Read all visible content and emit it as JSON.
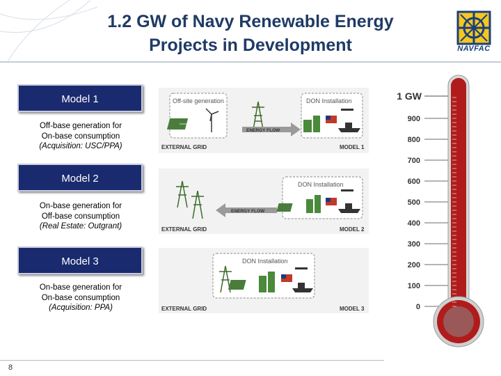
{
  "title_line1": "1.2 GW of Navy Renewable Energy",
  "title_line2": "Projects in Development",
  "logo_text": "NAVFAC",
  "models": [
    {
      "label": "Model 1",
      "desc_line1": "Off-base generation for",
      "desc_line2": "On-base consumption",
      "desc_line3": "(Acquisition: USC/PPA)"
    },
    {
      "label": "Model 2",
      "desc_line1": "On-base generation for",
      "desc_line2": "Off-base consumption",
      "desc_line3": "(Real Estate: Outgrant)"
    },
    {
      "label": "Model 3",
      "desc_line1": "On-base generation for",
      "desc_line2": "On-base consumption",
      "desc_line3": "(Acquisition: PPA)"
    }
  ],
  "panels": [
    {
      "offsite_label": "Off-site generation",
      "installation_label": "DON Installation",
      "flow_label": "ENERGY FLOW",
      "grid_label": "EXTERNAL GRID",
      "model_label": "MODEL 1"
    },
    {
      "installation_label": "DON Installation",
      "flow_label": "ENERGY FLOW",
      "grid_label": "EXTERNAL GRID",
      "model_label": "MODEL 2"
    },
    {
      "installation_label": "DON Installation",
      "grid_label": "EXTERNAL GRID",
      "model_label": "MODEL 3"
    }
  ],
  "thermometer": {
    "top_label": "1 GW",
    "scale_labels": [
      "900",
      "800",
      "700",
      "600",
      "500",
      "400",
      "300",
      "200",
      "100",
      "0"
    ],
    "tube_color": "#b01c1c"
  },
  "page_number": "8"
}
